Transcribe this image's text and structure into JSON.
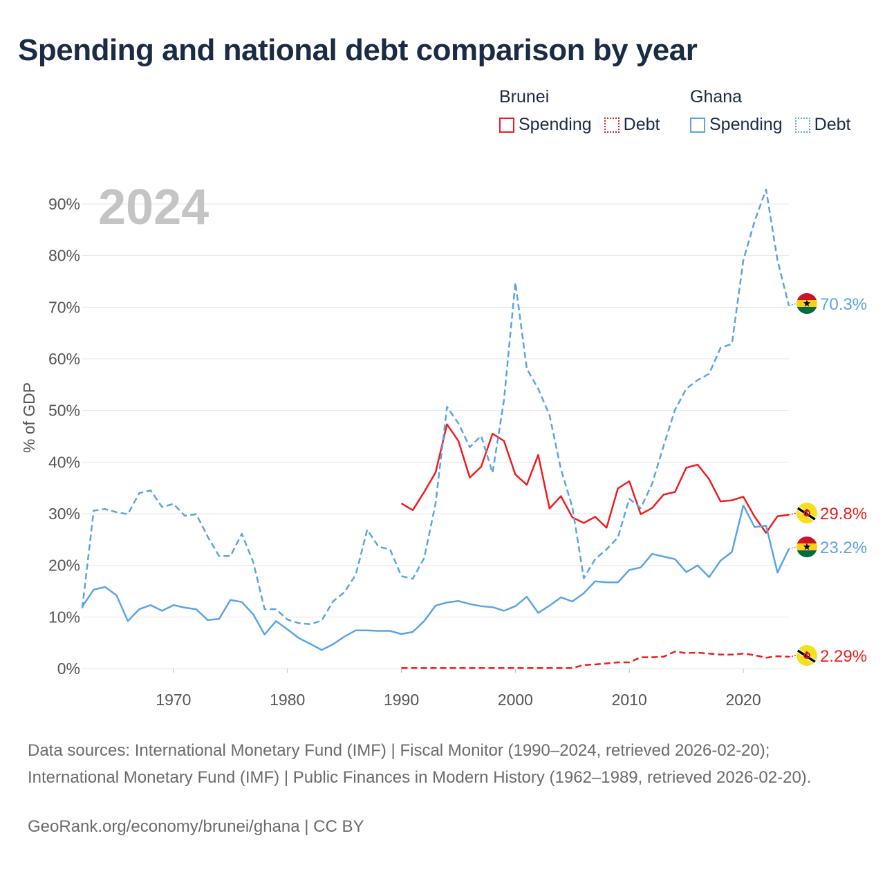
{
  "title": "Spending and national debt comparison by year",
  "legend": [
    {
      "country": "Brunei",
      "color": "#ee1c1c",
      "items": [
        {
          "label": "Spending",
          "style": "solid"
        },
        {
          "label": "Debt",
          "style": "dotted"
        }
      ]
    },
    {
      "country": "Ghana",
      "color": "#5aa3e6",
      "items": [
        {
          "label": "Spending",
          "style": "solid"
        },
        {
          "label": "Debt",
          "style": "dotted"
        }
      ]
    }
  ],
  "sources": "Data sources: International Monetary Fund (IMF) | Fiscal Monitor (1990–2024, retrieved 2026-02-20); International Monetary Fund (IMF) | Public Finances in Modern History (1962–1989, retrieved 2026-02-20).",
  "attribution": "GeoRank.org/economy/brunei/ghana | CC BY",
  "chart_data": {
    "type": "line",
    "title": "Spending and national debt comparison by year",
    "year_label": "2024",
    "xlabel": "",
    "ylabel": "% of GDP",
    "xlim": [
      1962,
      2024
    ],
    "ylim": [
      0,
      95
    ],
    "y_ticks": [
      0,
      10,
      20,
      30,
      40,
      50,
      60,
      70,
      80,
      90
    ],
    "y_tick_labels": [
      "0%",
      "10%",
      "20%",
      "30%",
      "40%",
      "50%",
      "60%",
      "70%",
      "80%",
      "90%"
    ],
    "x_ticks": [
      1970,
      1980,
      1990,
      2000,
      2010,
      2020
    ],
    "x_tick_labels": [
      "1970",
      "1980",
      "1990",
      "2000",
      "2010",
      "2020"
    ],
    "grid": true,
    "series": [
      {
        "name": "Brunei Spending",
        "country": "Brunei",
        "metric": "Spending",
        "color": "#ee1c1c",
        "dash": "solid",
        "end_label": "29.8%",
        "flag": "brunei",
        "x": [
          1990,
          1991,
          1992,
          1993,
          1994,
          1995,
          1996,
          1997,
          1998,
          1999,
          2000,
          2001,
          2002,
          2003,
          2004,
          2005,
          2006,
          2007,
          2008,
          2009,
          2010,
          2011,
          2012,
          2013,
          2014,
          2015,
          2016,
          2017,
          2018,
          2019,
          2020,
          2021,
          2022,
          2023,
          2024
        ],
        "values": [
          32.0,
          30.7,
          34.2,
          38.0,
          47.3,
          44.1,
          37.0,
          39.1,
          45.5,
          44.1,
          37.6,
          35.6,
          41.4,
          31.0,
          33.4,
          29.3,
          28.2,
          29.4,
          27.3,
          34.9,
          36.3,
          29.9,
          31.1,
          33.7,
          34.2,
          38.9,
          39.5,
          36.7,
          32.4,
          32.6,
          33.3,
          29.4,
          26.3,
          29.5,
          29.8
        ]
      },
      {
        "name": "Brunei Debt",
        "country": "Brunei",
        "metric": "Debt",
        "color": "#ee1c1c",
        "dash": "dashed",
        "end_label": "2.29%",
        "flag": "brunei",
        "x": [
          1990,
          1991,
          1992,
          1993,
          1994,
          1995,
          1996,
          1997,
          1998,
          1999,
          2000,
          2001,
          2002,
          2003,
          2004,
          2005,
          2006,
          2007,
          2008,
          2009,
          2010,
          2011,
          2012,
          2013,
          2014,
          2015,
          2016,
          2017,
          2018,
          2019,
          2020,
          2021,
          2022,
          2023,
          2024
        ],
        "values": [
          0.1,
          0.1,
          0.1,
          0.1,
          0.1,
          0.1,
          0.1,
          0.1,
          0.1,
          0.1,
          0.1,
          0.1,
          0.1,
          0.1,
          0.1,
          0.1,
          0.7,
          0.8,
          1.0,
          1.2,
          1.2,
          2.2,
          2.2,
          2.3,
          3.3,
          3.0,
          3.1,
          2.9,
          2.7,
          2.7,
          2.9,
          2.6,
          2.1,
          2.4,
          2.29
        ]
      },
      {
        "name": "Ghana Spending",
        "country": "Ghana",
        "metric": "Spending",
        "color": "#5aa3e6",
        "dash": "solid",
        "end_label": "23.2%",
        "flag": "ghana",
        "x": [
          1962,
          1963,
          1964,
          1965,
          1966,
          1967,
          1968,
          1969,
          1970,
          1971,
          1972,
          1973,
          1974,
          1975,
          1976,
          1977,
          1978,
          1979,
          1980,
          1981,
          1982,
          1983,
          1984,
          1985,
          1986,
          1987,
          1988,
          1989,
          1990,
          1991,
          1992,
          1993,
          1994,
          1995,
          1996,
          1997,
          1998,
          1999,
          2000,
          2001,
          2002,
          2003,
          2004,
          2005,
          2006,
          2007,
          2008,
          2009,
          2010,
          2011,
          2012,
          2013,
          2014,
          2015,
          2016,
          2017,
          2018,
          2019,
          2020,
          2021,
          2022,
          2023,
          2024
        ],
        "values": [
          12.0,
          15.3,
          15.8,
          14.2,
          9.2,
          11.5,
          12.3,
          11.2,
          12.3,
          11.8,
          11.5,
          9.4,
          9.6,
          13.3,
          12.9,
          10.5,
          6.6,
          9.2,
          7.6,
          5.9,
          4.8,
          3.6,
          4.7,
          6.2,
          7.4,
          7.4,
          7.3,
          7.3,
          6.7,
          7.1,
          9.2,
          12.2,
          12.8,
          13.1,
          12.5,
          12.1,
          11.9,
          11.2,
          12.1,
          13.9,
          10.8,
          12.2,
          13.8,
          13.0,
          14.6,
          16.9,
          16.7,
          16.7,
          19.1,
          19.6,
          22.2,
          21.7,
          21.2,
          18.7,
          20.0,
          17.7,
          20.9,
          22.6,
          31.6,
          27.4,
          27.7,
          18.6,
          23.2
        ]
      },
      {
        "name": "Ghana Debt",
        "country": "Ghana",
        "metric": "Debt",
        "color": "#5aa3e6",
        "dash": "dashed",
        "end_label": "70.3%",
        "flag": "ghana",
        "x": [
          1962,
          1963,
          1964,
          1965,
          1966,
          1967,
          1968,
          1969,
          1970,
          1971,
          1972,
          1973,
          1974,
          1975,
          1976,
          1977,
          1978,
          1979,
          1980,
          1981,
          1982,
          1983,
          1984,
          1985,
          1986,
          1987,
          1988,
          1989,
          1990,
          1991,
          1992,
          1993,
          1994,
          1995,
          1996,
          1997,
          1998,
          1999,
          2000,
          2001,
          2002,
          2003,
          2004,
          2005,
          2006,
          2007,
          2008,
          2009,
          2010,
          2011,
          2012,
          2013,
          2014,
          2015,
          2016,
          2017,
          2018,
          2019,
          2020,
          2021,
          2022,
          2023,
          2024
        ],
        "values": [
          11.7,
          30.6,
          30.9,
          30.3,
          29.9,
          34.0,
          34.5,
          31.3,
          31.9,
          29.6,
          29.9,
          25.6,
          21.8,
          21.8,
          26.1,
          20.6,
          11.5,
          11.5,
          9.5,
          8.8,
          8.6,
          9.3,
          13.0,
          14.8,
          18.2,
          26.9,
          23.6,
          23.1,
          17.9,
          17.4,
          21.4,
          32.0,
          50.7,
          47.5,
          42.9,
          45.1,
          37.9,
          52.0,
          74.8,
          58.1,
          54.2,
          49.1,
          38.6,
          31.3,
          17.5,
          21.2,
          23.1,
          25.4,
          32.9,
          31.1,
          35.8,
          43.1,
          50.1,
          54.2,
          55.9,
          57.1,
          62.1,
          62.9,
          79.1,
          86.7,
          92.8,
          79.1,
          70.3
        ]
      }
    ]
  }
}
